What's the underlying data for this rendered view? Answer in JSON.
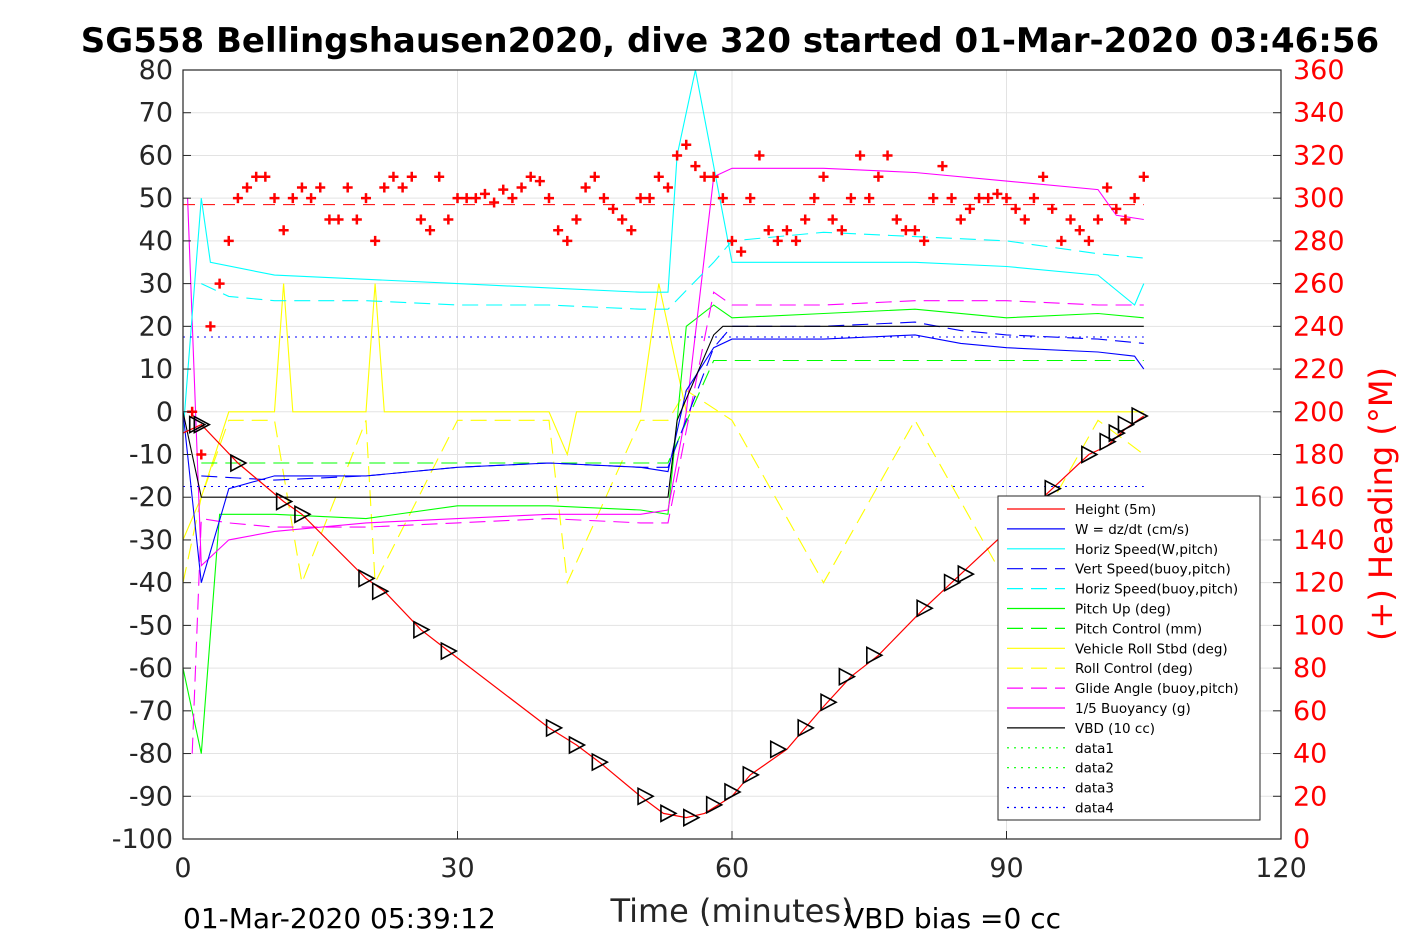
{
  "chart_data": {
    "type": "line",
    "title": "SG558 Bellingshausen2020, dive 320 started 01-Mar-2020 03:46:56",
    "xlabel": "Time (minutes)",
    "ylabel_right": "(+) Heading (°M)",
    "xlim": [
      0,
      120
    ],
    "ylim_left": [
      -100,
      80
    ],
    "ylim_right": [
      0,
      360
    ],
    "x_ticks": [
      0,
      30,
      60,
      90,
      120
    ],
    "y_ticks_left": [
      -100,
      -90,
      -80,
      -70,
      -60,
      -50,
      -40,
      -30,
      -20,
      -10,
      0,
      10,
      20,
      30,
      40,
      50,
      60,
      70,
      80
    ],
    "y_ticks_right": [
      0,
      20,
      40,
      60,
      80,
      100,
      120,
      140,
      160,
      180,
      200,
      220,
      240,
      260,
      280,
      300,
      320,
      340,
      360
    ],
    "grid": true,
    "legend_position": "bottom-right",
    "footer_left": "01-Mar-2020 05:39:12",
    "footer_right": "VBD bias =0 cc",
    "colors": {
      "red": "#ff0000",
      "blue": "#0000ff",
      "cyan": "#00ffff",
      "green": "#00ff00",
      "yellow": "#ffff00",
      "magenta": "#ff00ff",
      "black": "#000000"
    },
    "series": [
      {
        "name": "Height (5m)",
        "color": "#ff0000",
        "style": "solid",
        "x": [
          0,
          2,
          6,
          11,
          13,
          20,
          22,
          26,
          29,
          40,
          43,
          45.5,
          50,
          52.5,
          55,
          57,
          60,
          62,
          66,
          70,
          73,
          76,
          81,
          84,
          85,
          95,
          99,
          101,
          103,
          105
        ],
        "y": [
          -5,
          -3,
          -12,
          -21,
          -24,
          -39,
          -42,
          -51,
          -56,
          -74,
          -78,
          -82,
          -90,
          -94,
          -95,
          -94,
          -90,
          -85,
          -79,
          -69,
          -62,
          -57,
          -46,
          -40,
          -38,
          -18,
          -10,
          -8,
          -4,
          -1
        ]
      },
      {
        "name": "W = dz/dt (cm/s)",
        "color": "#0000ff",
        "style": "solid",
        "x": [
          0,
          2,
          5,
          10,
          20,
          30,
          40,
          50,
          53,
          55,
          58,
          60,
          70,
          80,
          85,
          90,
          100,
          104,
          105
        ],
        "y": [
          0,
          -40,
          -18,
          -15,
          -15,
          -13,
          -12,
          -13,
          -14,
          5,
          15,
          17,
          17,
          18,
          16,
          15,
          14,
          13,
          10
        ]
      },
      {
        "name": "Horiz Speed(W,pitch)",
        "color": "#00ffff",
        "style": "solid",
        "x": [
          0,
          2,
          3,
          10,
          20,
          30,
          40,
          50,
          53,
          54,
          56,
          60,
          70,
          80,
          90,
          100,
          104,
          105
        ],
        "y": [
          -5,
          50,
          35,
          32,
          31,
          30,
          29,
          28,
          28,
          60,
          80,
          35,
          35,
          35,
          34,
          32,
          25,
          30
        ]
      },
      {
        "name": "Vert Speed(buoy,pitch)",
        "color": "#0000ff",
        "style": "dashed",
        "x": [
          2,
          10,
          20,
          30,
          40,
          50,
          53,
          58,
          60,
          70,
          80,
          85,
          90,
          100,
          105
        ],
        "y": [
          -15,
          -16,
          -15,
          -13,
          -12,
          -13,
          -13,
          15,
          20,
          20,
          21,
          19,
          18,
          17,
          16
        ]
      },
      {
        "name": "Horiz Speed(buoy,pitch)",
        "color": "#00ffff",
        "style": "dashed",
        "x": [
          2,
          5,
          10,
          20,
          30,
          40,
          50,
          53,
          58,
          60,
          70,
          80,
          90,
          100,
          105
        ],
        "y": [
          30,
          27,
          26,
          26,
          25,
          25,
          24,
          24,
          35,
          40,
          42,
          41,
          40,
          37,
          36
        ]
      },
      {
        "name": "Pitch Up (deg)",
        "color": "#00ff00",
        "style": "solid",
        "x": [
          0,
          2,
          4,
          10,
          20,
          30,
          40,
          50,
          53,
          55,
          58,
          60,
          70,
          80,
          90,
          100,
          105
        ],
        "y": [
          -60,
          -80,
          -24,
          -24,
          -25,
          -22,
          -22,
          -23,
          -24,
          20,
          25,
          22,
          23,
          24,
          22,
          23,
          22
        ]
      },
      {
        "name": "Pitch Control (mm)",
        "color": "#00ff00",
        "style": "dashed",
        "x": [
          2,
          10,
          20,
          30,
          40,
          50,
          53,
          58,
          60,
          70,
          80,
          90,
          100,
          105
        ],
        "y": [
          -12,
          -12,
          -12,
          -12,
          -12,
          -12,
          -12,
          12,
          12,
          12,
          12,
          12,
          12,
          12
        ]
      },
      {
        "name": "Vehicle Roll Stbd (deg)",
        "color": "#ffff00",
        "style": "solid",
        "x": [
          0,
          2,
          5,
          10,
          11,
          12,
          20,
          21,
          22,
          30,
          40,
          42,
          43,
          50,
          52,
          55,
          60,
          70,
          80,
          90,
          100,
          105
        ],
        "y": [
          -30,
          -20,
          0,
          0,
          30,
          0,
          0,
          30,
          0,
          0,
          0,
          -10,
          0,
          0,
          30,
          0,
          0,
          0,
          0,
          0,
          0,
          0
        ]
      },
      {
        "name": "Roll Control (deg)",
        "color": "#ffff00",
        "style": "dashed",
        "x": [
          0,
          2,
          5,
          10,
          13,
          20,
          21,
          30,
          40,
          42,
          50,
          53,
          55,
          60,
          70,
          80,
          90,
          100,
          105
        ],
        "y": [
          -40,
          -20,
          -2,
          -2,
          -40,
          -2,
          -40,
          -2,
          -2,
          -40,
          -2,
          -2,
          5,
          -2,
          -40,
          -2,
          -40,
          -2,
          -10
        ]
      },
      {
        "name": "Glide Angle (buoy,pitch)",
        "color": "#ff00ff",
        "style": "dashed",
        "x": [
          1,
          2,
          5,
          10,
          20,
          30,
          40,
          50,
          53,
          58,
          60,
          70,
          80,
          90,
          100,
          105
        ],
        "y": [
          -80,
          -25,
          -26,
          -27,
          -27,
          -26,
          -25,
          -26,
          -26,
          28,
          25,
          25,
          26,
          26,
          25,
          25
        ]
      },
      {
        "name": "1/5 Buoyancy (g)",
        "color": "#ff00ff",
        "style": "solid",
        "x": [
          0.5,
          2,
          5,
          10,
          20,
          30,
          40,
          50,
          53,
          55,
          58,
          60,
          70,
          80,
          90,
          100,
          102,
          105
        ],
        "y": [
          50,
          -36,
          -30,
          -28,
          -26,
          -25,
          -24,
          -24,
          -23,
          0,
          55,
          57,
          57,
          56,
          54,
          52,
          46,
          45
        ]
      },
      {
        "name": "VBD (10 cc)",
        "color": "#000000",
        "style": "solid",
        "x": [
          0,
          2,
          3,
          10,
          20,
          30,
          40,
          50,
          53,
          54,
          58,
          59,
          60,
          70,
          80,
          90,
          100,
          105
        ],
        "y": [
          0,
          -20,
          -20,
          -20,
          -20,
          -20,
          -20,
          -20,
          -20,
          -2,
          18,
          20,
          20,
          20,
          20,
          20,
          20,
          20
        ]
      },
      {
        "name": "data1",
        "color": "#00ff00",
        "style": "dotted",
        "x": [],
        "y": []
      },
      {
        "name": "data2",
        "color": "#00ff00",
        "style": "dotted",
        "x": [],
        "y": []
      },
      {
        "name": "data3",
        "color": "#0000ff",
        "style": "dotted",
        "x": [
          0,
          105
        ],
        "y": [
          17.5,
          17.5
        ]
      },
      {
        "name": "data4",
        "color": "#0000ff",
        "style": "dotted",
        "x": [
          0,
          105
        ],
        "y": [
          -17.5,
          -17.5
        ]
      }
    ],
    "heading_series": {
      "axis": "right",
      "color": "#ff0000",
      "marker": "+",
      "x": [
        1,
        2,
        3,
        4,
        5,
        6,
        7,
        8,
        9,
        10,
        11,
        12,
        13,
        14,
        15,
        16,
        17,
        18,
        19,
        20,
        21,
        22,
        23,
        24,
        25,
        26,
        27,
        28,
        29,
        30,
        31,
        32,
        33,
        34,
        35,
        36,
        37,
        38,
        39,
        40,
        41,
        42,
        43,
        44,
        45,
        46,
        47,
        48,
        49,
        50,
        51,
        52,
        53,
        54,
        55,
        56,
        57,
        58,
        59,
        60,
        61,
        62,
        63,
        64,
        65,
        66,
        67,
        68,
        69,
        70,
        71,
        72,
        73,
        74,
        75,
        76,
        77,
        78,
        79,
        80,
        81,
        82,
        83,
        84,
        85,
        86,
        87,
        88,
        89,
        90,
        91,
        92,
        93,
        94,
        95,
        96,
        97,
        98,
        99,
        100,
        101,
        102,
        103,
        104,
        105
      ],
      "y": [
        200,
        180,
        240,
        260,
        280,
        300,
        305,
        310,
        310,
        300,
        285,
        300,
        305,
        300,
        305,
        290,
        290,
        305,
        290,
        300,
        280,
        305,
        310,
        305,
        310,
        290,
        285,
        310,
        290,
        300,
        300,
        300,
        302,
        298,
        304,
        300,
        305,
        310,
        308,
        300,
        285,
        280,
        290,
        305,
        310,
        300,
        295,
        290,
        285,
        300,
        300,
        310,
        305,
        320,
        325,
        315,
        310,
        310,
        300,
        280,
        275,
        300,
        320,
        285,
        280,
        285,
        280,
        290,
        300,
        310,
        290,
        285,
        300,
        320,
        300,
        310,
        320,
        290,
        285,
        285,
        280,
        300,
        315,
        300,
        290,
        295,
        300,
        300,
        302,
        300,
        295,
        290,
        300,
        310,
        295,
        280,
        290,
        285,
        280,
        290,
        305,
        295,
        290,
        300,
        310
      ]
    },
    "heading_mean": 297,
    "dive_markers": {
      "axis": "left",
      "x": [
        1.5,
        2,
        6,
        11,
        13,
        20,
        21.5,
        26,
        29,
        40.5,
        43,
        45.5,
        50.5,
        53,
        55.5,
        58,
        60,
        62,
        65,
        68,
        70.5,
        72.5,
        75.5,
        81,
        84,
        85.5,
        95,
        99,
        101,
        102,
        103,
        104.5
      ],
      "y": [
        -3,
        -3,
        -12,
        -21,
        -24,
        -39,
        -42,
        -51,
        -56,
        -74,
        -78,
        -82,
        -90,
        -94,
        -95,
        -92,
        -89,
        -85,
        -79,
        -74,
        -68,
        -62,
        -57,
        -46,
        -40,
        -38,
        -18,
        -10,
        -7,
        -5,
        -3,
        -1
      ]
    }
  }
}
